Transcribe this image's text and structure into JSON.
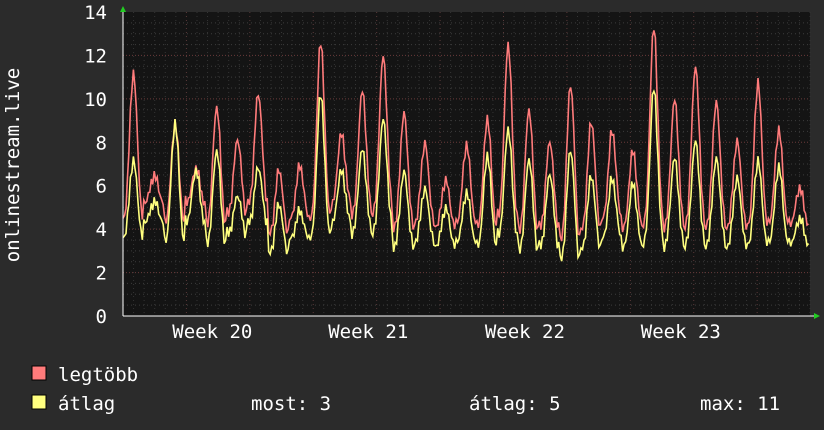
{
  "chart_data": {
    "type": "line",
    "ylabel": "onlinestream.live",
    "ylim": [
      0,
      14
    ],
    "yticks": [
      0,
      2,
      4,
      6,
      8,
      10,
      12,
      14
    ],
    "xlim": [
      0,
      1000
    ],
    "week_labels": [
      {
        "label": "Week 20",
        "x": 130
      },
      {
        "label": "Week 21",
        "x": 357
      },
      {
        "label": "Week 22",
        "x": 585
      },
      {
        "label": "Week 23",
        "x": 812
      }
    ],
    "grid": true,
    "series": [
      {
        "name": "legtöbb",
        "color": "#ff7b7b",
        "peaks": [
          11.2,
          6.5,
          8.9,
          6.8,
          9.6,
          8.1,
          10.2,
          6.7,
          6.9,
          12.6,
          8.4,
          10.4,
          12.0,
          9.4,
          8.0,
          6.3,
          7.9,
          9.1,
          12.5,
          9.5,
          8.0,
          10.6,
          8.9,
          8.5,
          7.6,
          13.3,
          10.0,
          11.5,
          9.9,
          8.1,
          10.8,
          8.6,
          5.9
        ]
      },
      {
        "name": "átlag",
        "color": "#ffff7f",
        "peaks": [
          7.2,
          5.3,
          8.9,
          6.7,
          7.6,
          5.5,
          6.8,
          5.1,
          4.8,
          10.2,
          6.7,
          7.7,
          9.1,
          6.7,
          5.9,
          5.0,
          5.7,
          7.4,
          8.6,
          7.2,
          6.5,
          7.6,
          6.4,
          6.3,
          6.1,
          10.5,
          7.3,
          8.1,
          7.3,
          6.4,
          7.2,
          6.9,
          4.5
        ],
        "mins": [
          3.6,
          4.3,
          3.4,
          4.3,
          3.3,
          3.8,
          4.3,
          2.9,
          3.6,
          3.7,
          4.3,
          3.9,
          4.0,
          3.2,
          3.4,
          3.2,
          3.4,
          3.2,
          3.7,
          3.0,
          3.2,
          2.6,
          3.1,
          3.6,
          3.2,
          3.5,
          3.3,
          3.4,
          3.3,
          3.2,
          3.3,
          3.4,
          3.3
        ]
      }
    ]
  },
  "legend": [
    {
      "name": "legtöbb",
      "color": "#ff7b7b"
    },
    {
      "name": "átlag",
      "color": "#ffff7f"
    }
  ],
  "stats": {
    "now_label": "most: 3",
    "avg_label": "átlag: 5",
    "max_label": "max: 11"
  }
}
